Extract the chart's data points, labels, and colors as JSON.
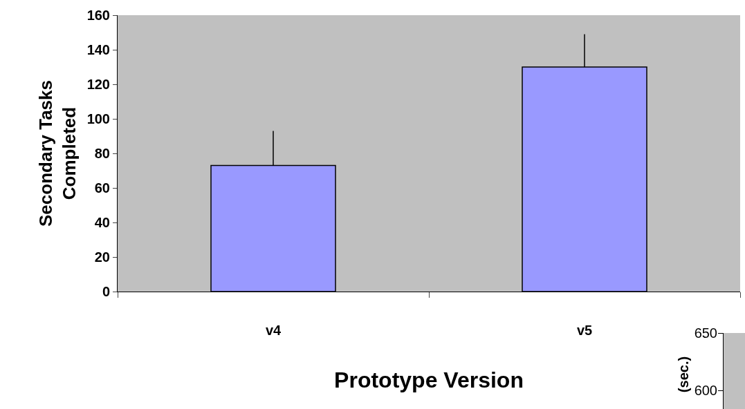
{
  "chart_data": [
    {
      "type": "bar",
      "categories": [
        "v4",
        "v5"
      ],
      "values": [
        73,
        130
      ],
      "errors": [
        [
          73,
          93
        ],
        [
          130,
          149
        ]
      ],
      "color": "#9999ff",
      "xlabel": "Prototype Version",
      "ylabel": "Secondary Tasks Completed",
      "ylim": [
        0,
        160
      ],
      "yticks": [
        0,
        20,
        40,
        60,
        80,
        100,
        120,
        140,
        160
      ],
      "grid": false
    },
    {
      "type": "other",
      "ylabel": "(sec.)",
      "annotations": [
        "650",
        "600"
      ]
    }
  ]
}
